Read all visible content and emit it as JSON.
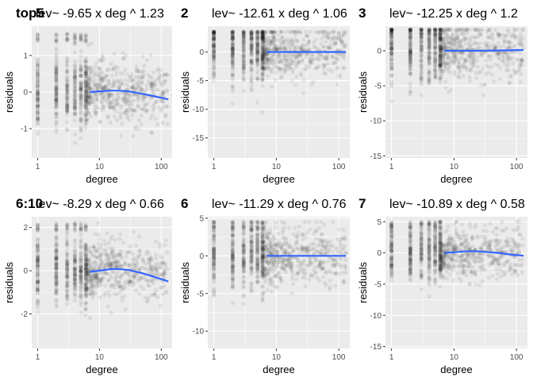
{
  "chart_data": [
    {
      "type": "scatter",
      "tag": "top5",
      "title": "lev~ -9.65  x deg ^ 1.23",
      "xlabel": "degree",
      "ylabel": "residuals",
      "x_scale": "log10",
      "xlim": [
        0.8,
        150
      ],
      "ylim": [
        -1.8,
        1.8
      ],
      "x_ticks": [
        {
          "value": 1,
          "label": "1"
        },
        {
          "value": 10,
          "label": "10"
        },
        {
          "value": 100,
          "label": "100"
        }
      ],
      "y_ticks": [
        {
          "value": -1,
          "label": "-1"
        },
        {
          "value": 0,
          "label": "0"
        },
        {
          "value": 1,
          "label": "1"
        }
      ],
      "grid": true,
      "points": {
        "color": "#000000",
        "opacity": 0.07,
        "spread": 0.6,
        "floor": -1.7,
        "ceil": 1.6
      },
      "smooth": {
        "color": "#3366ff",
        "x": [
          7,
          10,
          15,
          20,
          30,
          50,
          80,
          130
        ],
        "y": [
          0.0,
          0.02,
          0.04,
          0.04,
          0.02,
          -0.05,
          -0.12,
          -0.2
        ]
      }
    },
    {
      "type": "scatter",
      "tag": "2",
      "title": "lev~ -12.61  x deg ^ 1.06",
      "xlabel": "degree",
      "ylabel": "residuals",
      "x_scale": "log10",
      "xlim": [
        0.8,
        150
      ],
      "ylim": [
        -18.5,
        4.5
      ],
      "x_ticks": [
        {
          "value": 1,
          "label": "1"
        },
        {
          "value": 10,
          "label": "10"
        },
        {
          "value": 100,
          "label": "100"
        }
      ],
      "y_ticks": [
        {
          "value": -15,
          "label": "-15"
        },
        {
          "value": -10,
          "label": "-10"
        },
        {
          "value": -5,
          "label": "-5"
        },
        {
          "value": 0,
          "label": "0"
        }
      ],
      "grid": true,
      "points": {
        "color": "#000000",
        "opacity": 0.07,
        "spread": 3.5,
        "floor": -17,
        "ceil": 3.5
      },
      "smooth": {
        "color": "#3366ff",
        "x": [
          7,
          15,
          30,
          60,
          130
        ],
        "y": [
          0,
          0,
          0,
          0,
          0
        ]
      }
    },
    {
      "type": "scatter",
      "tag": "3",
      "title": "lev~ -12.25  x deg ^ 1.2",
      "xlabel": "degree",
      "ylabel": "residuals",
      "x_scale": "log10",
      "xlim": [
        0.8,
        150
      ],
      "ylim": [
        -15.3,
        3.5
      ],
      "x_ticks": [
        {
          "value": 1,
          "label": "1"
        },
        {
          "value": 10,
          "label": "10"
        },
        {
          "value": 100,
          "label": "100"
        }
      ],
      "y_ticks": [
        {
          "value": -15,
          "label": "-15"
        },
        {
          "value": -10,
          "label": "-10"
        },
        {
          "value": -5,
          "label": "-5"
        },
        {
          "value": 0,
          "label": "0"
        }
      ],
      "grid": true,
      "points": {
        "color": "#000000",
        "opacity": 0.07,
        "spread": 3.0,
        "floor": -15,
        "ceil": 3
      },
      "smooth": {
        "color": "#3366ff",
        "x": [
          7,
          15,
          30,
          60,
          130
        ],
        "y": [
          0,
          0,
          0,
          0.05,
          0.1
        ]
      }
    },
    {
      "type": "scatter",
      "tag": "6:10",
      "title": "lev~ -8.29  x deg ^ 0.66",
      "xlabel": "degree",
      "ylabel": "residuals",
      "x_scale": "log10",
      "xlim": [
        0.8,
        150
      ],
      "ylim": [
        -3.6,
        2.5
      ],
      "x_ticks": [
        {
          "value": 1,
          "label": "1"
        },
        {
          "value": 10,
          "label": "10"
        },
        {
          "value": 100,
          "label": "100"
        }
      ],
      "y_ticks": [
        {
          "value": -2,
          "label": "-2"
        },
        {
          "value": 0,
          "label": "0"
        },
        {
          "value": 2,
          "label": "2"
        }
      ],
      "grid": true,
      "points": {
        "color": "#000000",
        "opacity": 0.07,
        "spread": 1.0,
        "floor": -3.4,
        "ceil": 2.2
      },
      "smooth": {
        "color": "#3366ff",
        "x": [
          7,
          10,
          15,
          20,
          30,
          50,
          80,
          130
        ],
        "y": [
          -0.05,
          0.0,
          0.07,
          0.08,
          0.03,
          -0.12,
          -0.3,
          -0.5
        ]
      }
    },
    {
      "type": "scatter",
      "tag": "6",
      "title": "lev~ -11.29  x deg ^ 0.76",
      "xlabel": "degree",
      "ylabel": "residuals",
      "x_scale": "log10",
      "xlim": [
        0.8,
        150
      ],
      "ylim": [
        -12.3,
        5.2
      ],
      "x_ticks": [
        {
          "value": 1,
          "label": "1"
        },
        {
          "value": 10,
          "label": "10"
        },
        {
          "value": 100,
          "label": "100"
        }
      ],
      "y_ticks": [
        {
          "value": -10,
          "label": "-10"
        },
        {
          "value": -5,
          "label": "-5"
        },
        {
          "value": 0,
          "label": "0"
        },
        {
          "value": 5,
          "label": "5"
        }
      ],
      "grid": true,
      "points": {
        "color": "#000000",
        "opacity": 0.07,
        "spread": 2.8,
        "floor": -12,
        "ceil": 4.5
      },
      "smooth": {
        "color": "#3366ff",
        "x": [
          7,
          15,
          30,
          60,
          130
        ],
        "y": [
          0,
          0,
          0,
          0,
          0
        ]
      }
    },
    {
      "type": "scatter",
      "tag": "7",
      "title": "lev~ -10.89  x deg ^ 0.58",
      "xlabel": "degree",
      "ylabel": "residuals",
      "x_scale": "log10",
      "xlim": [
        0.8,
        150
      ],
      "ylim": [
        -15.3,
        5.8
      ],
      "x_ticks": [
        {
          "value": 1,
          "label": "1"
        },
        {
          "value": 10,
          "label": "10"
        },
        {
          "value": 100,
          "label": "100"
        }
      ],
      "y_ticks": [
        {
          "value": -15,
          "label": "-15"
        },
        {
          "value": -10,
          "label": "-10"
        },
        {
          "value": -5,
          "label": "-5"
        },
        {
          "value": 0,
          "label": "0"
        },
        {
          "value": 5,
          "label": "5"
        }
      ],
      "grid": true,
      "points": {
        "color": "#000000",
        "opacity": 0.07,
        "spread": 3.0,
        "floor": -15,
        "ceil": 5
      },
      "smooth": {
        "color": "#3366ff",
        "x": [
          7,
          10,
          15,
          20,
          30,
          50,
          80,
          130
        ],
        "y": [
          0.0,
          0.1,
          0.25,
          0.3,
          0.2,
          0.0,
          -0.25,
          -0.45
        ]
      }
    }
  ]
}
